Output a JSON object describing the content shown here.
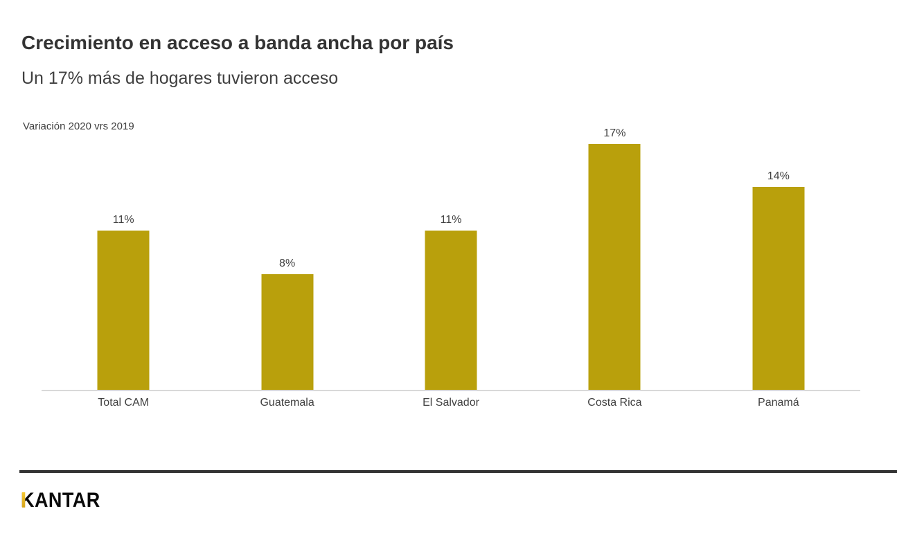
{
  "header": {
    "title": "Crecimiento en acceso a banda ancha por país",
    "subtitle": "Un 17% más de hogares tuvieron acceso"
  },
  "chart_data": {
    "type": "bar",
    "title": "Variación 2020 vrs 2019",
    "categories": [
      "Total CAM",
      "Guatemala",
      "El Salvador",
      "Costa Rica",
      "Panamá"
    ],
    "values": [
      11,
      8,
      11,
      17,
      14
    ],
    "value_labels": [
      "11%",
      "8%",
      "11%",
      "17%",
      "14%"
    ],
    "unit": "%",
    "ylim": [
      0,
      18
    ],
    "grid": false,
    "legend": "none",
    "bar_color": "#b9a00c",
    "axis_color": "#d9d9d9",
    "label_color": "#404040"
  },
  "footer": {
    "brand": "KANTAR",
    "divider_color": "#333333",
    "brand_accent_top": "#f4c72f",
    "brand_accent_bottom": "#d6a51d"
  }
}
